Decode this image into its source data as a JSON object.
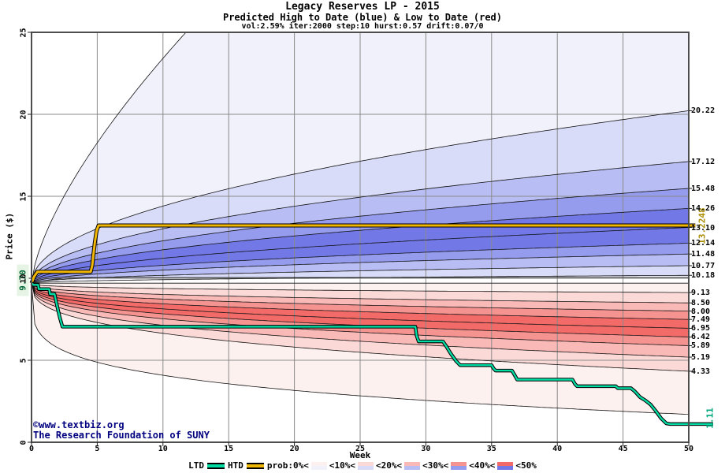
{
  "header": {
    "title": "Legacy Reserves LP - 2015",
    "subtitle": "Predicted High to Date (blue) &  Low to Date (red)",
    "params": "vol:2.59% iter:2000 step:10 hurst:0.57 drift:0.07/0"
  },
  "chart_data": {
    "type": "area",
    "title": "Legacy Reserves LP - 2015",
    "subtitle": "Predicted High to Date (blue) &  Low to Date (red)",
    "params_line": "vol:2.59% iter:2000 step:10 hurst:0.57 drift:0.07/0",
    "xlabel": "Week",
    "ylabel": "Price ($)",
    "xlim": [
      0,
      50
    ],
    "ylim": [
      0,
      25
    ],
    "xticks": [
      "0",
      "5",
      "10",
      "15",
      "20",
      "25",
      "30",
      "35",
      "40",
      "45",
      "50"
    ],
    "yticks": [
      "0",
      "5",
      "10",
      "15",
      "20",
      "25"
    ],
    "grid": true,
    "legend_position": "bottom",
    "start_price": 9.7,
    "start_label": "9.70",
    "blue_fan": {
      "description": "Predicted High-to-Date percentile band boundaries, week-50 end values (center outward)",
      "final_values": [
        "10.18",
        "10.77",
        "11.48",
        "12.14",
        "13.10",
        "14.26",
        "15.48",
        "17.12",
        "20.22"
      ],
      "inner_flat_value": 10.05,
      "shape_exponent": 0.5,
      "envelope": {
        "reaches_value": 25,
        "at_week": 12.2,
        "exponent": 0.68
      },
      "shades": [
        "#f0f1fb",
        "#d9dcf8",
        "#b8bdf3",
        "#959cee",
        "#7279e7"
      ]
    },
    "red_fan": {
      "description": "Predicted Low-to-Date percentile band boundaries, week-50 end values (center outward)",
      "final_values": [
        "9.13",
        "8.50",
        "8.00",
        "7.49",
        "6.95",
        "6.42",
        "5.89",
        "5.19",
        "4.33"
      ],
      "outer_flat_value": 9.7,
      "shape_exponent": 0.35,
      "envelope": {
        "final_value": 1.7,
        "exponent": 0.22
      },
      "shades": [
        "#fdf1ef",
        "#fbd9d7",
        "#f8b9b7",
        "#f59391",
        "#f26b69"
      ]
    },
    "htd_line": {
      "name": "HTD",
      "color": "#f2b705",
      "final_label": "13.2248",
      "points": [
        [
          0,
          9.7
        ],
        [
          0.2,
          10.1
        ],
        [
          0.45,
          10.4
        ],
        [
          4.5,
          10.4
        ],
        [
          4.62,
          10.8
        ],
        [
          4.72,
          11.5
        ],
        [
          4.82,
          12.2
        ],
        [
          4.95,
          12.9
        ],
        [
          5.1,
          13.22
        ],
        [
          50,
          13.22
        ],
        [
          50.5,
          13.22
        ]
      ]
    },
    "ltd_line": {
      "name": "LTD",
      "color": "#00dca4",
      "final_label": "1.11",
      "points": [
        [
          0,
          9.7
        ],
        [
          0.15,
          9.6
        ],
        [
          0.5,
          9.6
        ],
        [
          0.55,
          9.34
        ],
        [
          1.35,
          9.34
        ],
        [
          1.4,
          9.04
        ],
        [
          1.75,
          9.04
        ],
        [
          1.95,
          8.3
        ],
        [
          2.15,
          7.6
        ],
        [
          2.35,
          7.05
        ],
        [
          29.2,
          7.05
        ],
        [
          29.3,
          6.5
        ],
        [
          29.45,
          6.15
        ],
        [
          31.3,
          6.15
        ],
        [
          31.55,
          5.85
        ],
        [
          31.9,
          5.4
        ],
        [
          32.3,
          4.95
        ],
        [
          32.6,
          4.7
        ],
        [
          35,
          4.7
        ],
        [
          35.15,
          4.5
        ],
        [
          35.3,
          4.37
        ],
        [
          36.55,
          4.37
        ],
        [
          36.75,
          4.1
        ],
        [
          36.95,
          3.82
        ],
        [
          41.15,
          3.82
        ],
        [
          41.35,
          3.55
        ],
        [
          41.5,
          3.42
        ],
        [
          44.45,
          3.42
        ],
        [
          44.6,
          3.3
        ],
        [
          45.6,
          3.3
        ],
        [
          45.9,
          3.1
        ],
        [
          46.3,
          2.75
        ],
        [
          46.7,
          2.55
        ],
        [
          47.1,
          2.3
        ],
        [
          47.5,
          1.9
        ],
        [
          47.9,
          1.45
        ],
        [
          48.3,
          1.15
        ],
        [
          48.6,
          1.11
        ],
        [
          50,
          1.11
        ],
        [
          51.85,
          1.11
        ]
      ]
    }
  },
  "legend": {
    "ltd_label": "LTD",
    "htd_label": "HTD",
    "prob_labels": [
      "prob:0%<",
      "<10%<",
      "<20%<",
      "<30%<",
      "<40%<",
      "<50%"
    ]
  },
  "footer": {
    "line1": "©www.textbiz.org",
    "line2": "The Research Foundation of SUNY"
  },
  "colors": {
    "frame": "#4d4d4d",
    "grid": "#8a8a8a",
    "boundary_line": "#111111",
    "htd": "#f2b705",
    "ltd": "#00dca4",
    "start_label_text": "#006837",
    "start_label_bg": "#e6f4e6",
    "htd_label_text": "#a98c00",
    "ltd_label_text": "#00a87e",
    "footer_text": "#000080"
  }
}
